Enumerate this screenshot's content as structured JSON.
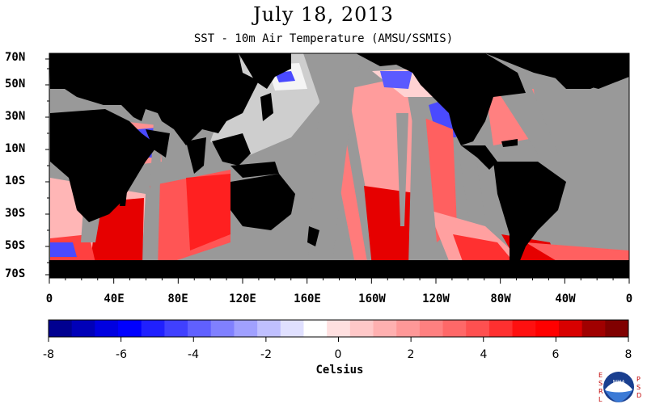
{
  "title": "July 18, 2013",
  "subtitle": "SST - 10m Air Temperature (AMSU/SSMIS)",
  "map": {
    "latitude_labels": [
      "70N",
      "50N",
      "30N",
      "10N",
      "10S",
      "30S",
      "50S",
      "70S"
    ],
    "longitude_labels": [
      "0",
      "40E",
      "80E",
      "120E",
      "160E",
      "160W",
      "120W",
      "80W",
      "40W",
      "0"
    ],
    "land_color": "#000000",
    "no_data_color": "#999999"
  },
  "colorbar": {
    "tick_labels": [
      "-8",
      "-6",
      "-4",
      "-2",
      "0",
      "2",
      "4",
      "6",
      "8"
    ],
    "units_label": "Celsius",
    "colors": [
      "#000090",
      "#0000b8",
      "#0000e0",
      "#0000ff",
      "#2020ff",
      "#4040ff",
      "#6060ff",
      "#8080ff",
      "#a0a0ff",
      "#c0c0ff",
      "#e0e0ff",
      "#ffffff",
      "#ffe0e0",
      "#ffc8c8",
      "#ffb0b0",
      "#ff9898",
      "#ff8080",
      "#ff6868",
      "#ff5050",
      "#ff3030",
      "#ff1010",
      "#ff0000",
      "#d80000",
      "#a00000",
      "#800000"
    ]
  },
  "logo": {
    "left_letters": [
      "E",
      "S",
      "R",
      "L"
    ],
    "right_letters": [
      "P",
      "S",
      "D"
    ],
    "center_text": "NOAA"
  }
}
